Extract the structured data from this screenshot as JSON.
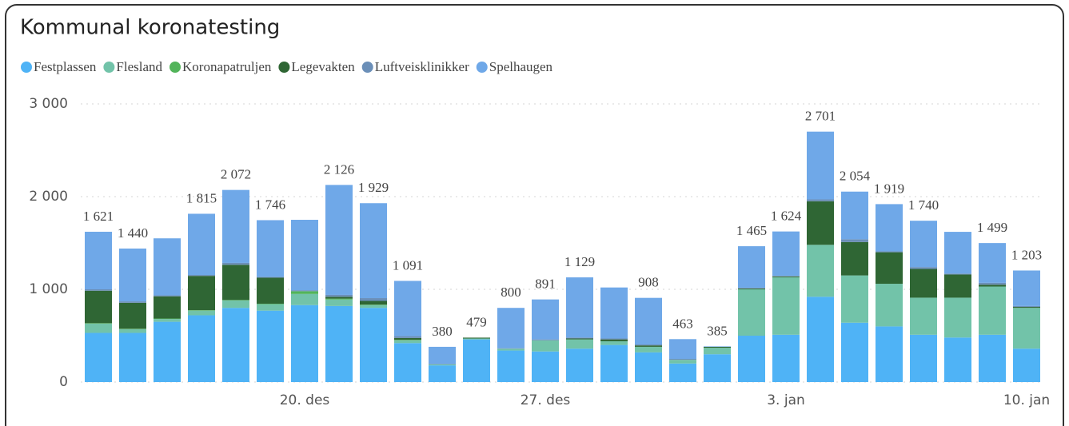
{
  "chart_data": {
    "type": "stacked_bar",
    "title": "Kommunal koronatesting",
    "categories": [
      null,
      null,
      null,
      null,
      null,
      null,
      "20. des",
      null,
      null,
      null,
      null,
      null,
      null,
      "27. des",
      null,
      null,
      null,
      null,
      null,
      null,
      "3. jan",
      null,
      null,
      null,
      null,
      null,
      null,
      "10. jan"
    ],
    "series": [
      {
        "name": "Festplassen",
        "color": "#4fb3f6",
        "values": [
          530,
          530,
          650,
          720,
          800,
          770,
          830,
          820,
          800,
          420,
          180,
          460,
          340,
          330,
          360,
          400,
          320,
          200,
          300,
          500,
          510,
          920,
          640,
          600,
          510,
          480,
          510,
          360
        ]
      },
      {
        "name": "Flesland",
        "color": "#72c3a9",
        "values": [
          100,
          40,
          30,
          50,
          80,
          70,
          120,
          70,
          30,
          30,
          10,
          10,
          20,
          120,
          100,
          40,
          60,
          40,
          70,
          500,
          620,
          560,
          510,
          460,
          400,
          430,
          520,
          440
        ]
      },
      {
        "name": "Koronapatruljen",
        "color": "#52b45a",
        "values": [
          5,
          5,
          5,
          5,
          5,
          5,
          30,
          10,
          5,
          5,
          0,
          0,
          0,
          0,
          0,
          0,
          0,
          0,
          0,
          0,
          0,
          0,
          0,
          0,
          0,
          0,
          0,
          0
        ]
      },
      {
        "name": "Legevakten",
        "color": "#2f6634",
        "values": [
          350,
          280,
          240,
          370,
          380,
          280,
          0,
          20,
          40,
          20,
          0,
          9,
          0,
          0,
          10,
          20,
          15,
          0,
          10,
          10,
          10,
          470,
          360,
          340,
          310,
          250,
          20,
          10
        ]
      },
      {
        "name": "Luftveisklinikker",
        "color": "#6b8fb8",
        "values": [
          15,
          15,
          10,
          10,
          20,
          10,
          10,
          20,
          30,
          20,
          5,
          0,
          5,
          10,
          10,
          10,
          10,
          10,
          0,
          5,
          5,
          20,
          30,
          10,
          20,
          10,
          20,
          10
        ]
      },
      {
        "name": "Spelhaugen",
        "color": "#6fa8e8",
        "values": [
          621,
          570,
          615,
          660,
          787,
          611,
          760,
          1186,
          1024,
          596,
          185,
          0,
          435,
          431,
          649,
          550,
          503,
          213,
          5,
          450,
          479,
          731,
          514,
          509,
          500,
          450,
          429,
          383
        ]
      }
    ],
    "totals": [
      1621,
      1440,
      null,
      1815,
      2072,
      1746,
      null,
      2126,
      1929,
      1091,
      380,
      479,
      800,
      891,
      1129,
      null,
      908,
      463,
      385,
      1465,
      1624,
      2701,
      2054,
      1919,
      1740,
      null,
      1499,
      1203
    ],
    "value_labels": [
      "1 621",
      "1 440",
      null,
      "1 815",
      "2 072",
      "1 746",
      null,
      "2 126",
      "1 929",
      "1 091",
      "380",
      "479",
      "800",
      "891",
      "1 129",
      null,
      "908",
      "463",
      "385",
      "1 465",
      "1 624",
      "2 701",
      "2 054",
      "1 919",
      "1 740",
      null,
      "1 499",
      "1 203"
    ],
    "ylim": [
      0,
      3000
    ],
    "yticks": [
      0,
      {
        "value": 1000,
        "label": "1 000"
      },
      {
        "value": 2000,
        "label": "2 000"
      },
      {
        "value": 3000,
        "label": "3 000"
      }
    ],
    "grid": true
  }
}
